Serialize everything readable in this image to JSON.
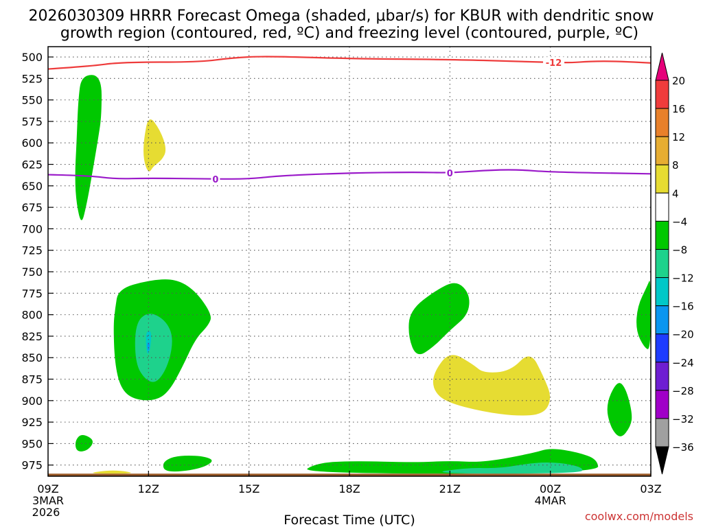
{
  "chart_data": {
    "type": "time-height cross section",
    "title_line1": "2026030309 HRRR Forecast Omega (shaded, μbar/s) for KBUR with dendritic snow",
    "title_line2": "growth region (contoured, red, ºC) and freezing level (contoured, purple, ºC)",
    "xlabel": "Forecast Time (UTC)",
    "credit": "coolwx.com/models",
    "x_ticks": [
      {
        "hour": 0,
        "label": "09Z",
        "date": "3MAR",
        "year": "2026"
      },
      {
        "hour": 3,
        "label": "12Z"
      },
      {
        "hour": 6,
        "label": "15Z"
      },
      {
        "hour": 9,
        "label": "18Z"
      },
      {
        "hour": 12,
        "label": "21Z"
      },
      {
        "hour": 15,
        "label": "00Z",
        "date": "4MAR"
      },
      {
        "hour": 18,
        "label": "03Z"
      }
    ],
    "xlim": [
      0,
      18
    ],
    "y_ticks": [
      "500",
      "525",
      "550",
      "575",
      "600",
      "625",
      "650",
      "675",
      "700",
      "725",
      "750",
      "775",
      "800",
      "825",
      "850",
      "875",
      "900",
      "925",
      "950",
      "975"
    ],
    "ylim_hpa": [
      488,
      988
    ],
    "surface_hpa": 985,
    "grid": true,
    "colorbar": {
      "labels": [
        "20",
        "16",
        "12",
        "8",
        "4",
        "-4",
        "-8",
        "-12",
        "-16",
        "-20",
        "-24",
        "-28",
        "-32",
        "-36"
      ],
      "bins": [
        {
          "from": 16,
          "to": 20,
          "color": "#f03c3c"
        },
        {
          "from": 12,
          "to": 16,
          "color": "#e8802a"
        },
        {
          "from": 8,
          "to": 12,
          "color": "#e6ad32"
        },
        {
          "from": 4,
          "to": 8,
          "color": "#e6dc32"
        },
        {
          "from": -4,
          "to": 4,
          "color": "#ffffff"
        },
        {
          "from": -8,
          "to": -4,
          "color": "#00c800"
        },
        {
          "from": -12,
          "to": -8,
          "color": "#1ed28c"
        },
        {
          "from": -16,
          "to": -12,
          "color": "#00c8c8"
        },
        {
          "from": -20,
          "to": -16,
          "color": "#0a96f0"
        },
        {
          "from": -24,
          "to": -20,
          "color": "#1e3cff"
        },
        {
          "from": -28,
          "to": -24,
          "color": "#6e1ed2"
        },
        {
          "from": -32,
          "to": -28,
          "color": "#a000c8"
        },
        {
          "from": -36,
          "to": -32,
          "color": "#a0a0a0"
        }
      ],
      "over_color": "#e6007a",
      "under_color": "#000000"
    },
    "contours": [
      {
        "name": "dendritic-growth-minus12C",
        "color": "#ee3b3b",
        "label": "-12",
        "label_hour": 15.1,
        "points": [
          [
            0,
            514
          ],
          [
            1.2,
            511
          ],
          [
            2.2,
            506
          ],
          [
            4.5,
            506
          ],
          [
            5.5,
            501
          ],
          [
            6.5,
            499
          ],
          [
            9,
            502
          ],
          [
            12,
            503
          ],
          [
            14,
            505
          ],
          [
            15.5,
            507
          ],
          [
            16.2,
            505
          ],
          [
            17,
            505
          ],
          [
            18,
            507
          ]
        ]
      },
      {
        "name": "freezing-level-0C",
        "color": "#9a19c9",
        "label": "0",
        "label_hour": 12,
        "label_hours": [
          5,
          12
        ],
        "points": [
          [
            0,
            637
          ],
          [
            1.2,
            638
          ],
          [
            2,
            642
          ],
          [
            3,
            641
          ],
          [
            5,
            642
          ],
          [
            6,
            642
          ],
          [
            7,
            638
          ],
          [
            9,
            635
          ],
          [
            11,
            634
          ],
          [
            12,
            635
          ],
          [
            13,
            632
          ],
          [
            14,
            631
          ],
          [
            15,
            634
          ],
          [
            18,
            636
          ]
        ]
      }
    ],
    "omega_regions": [
      {
        "category": "-4 to -8",
        "color": "#00c800",
        "shape": [
          [
            1.0,
            521
          ],
          [
            1.6,
            521
          ],
          [
            1.6,
            568
          ],
          [
            1.5,
            594
          ],
          [
            1.3,
            640
          ],
          [
            1.15,
            672
          ],
          [
            1.0,
            696
          ],
          [
            0.85,
            672
          ],
          [
            0.8,
            640
          ],
          [
            0.85,
            600
          ],
          [
            0.9,
            550
          ]
        ]
      },
      {
        "category": "4 to 8",
        "color": "#e6dc32",
        "shape": [
          [
            3.0,
            567
          ],
          [
            3.35,
            585
          ],
          [
            3.55,
            608
          ],
          [
            3.4,
            620
          ],
          [
            3.15,
            627
          ],
          [
            3.0,
            636
          ],
          [
            2.85,
            620
          ],
          [
            2.85,
            598
          ]
        ]
      },
      {
        "category": "-4 to -8",
        "color": "#00c800",
        "shape": [
          [
            2.1,
            770
          ],
          [
            3.0,
            760
          ],
          [
            3.8,
            758
          ],
          [
            4.4,
            772
          ],
          [
            4.9,
            800
          ],
          [
            4.8,
            812
          ],
          [
            4.4,
            828
          ],
          [
            4.0,
            862
          ],
          [
            3.6,
            890
          ],
          [
            3.2,
            900
          ],
          [
            2.6,
            899
          ],
          [
            2.2,
            888
          ],
          [
            2.0,
            860
          ],
          [
            1.95,
            815
          ],
          [
            2.0,
            793
          ]
        ]
      },
      {
        "category": "-8 to -12",
        "color": "#1ed28c",
        "shape": [
          [
            2.6,
            810
          ],
          [
            3.0,
            796
          ],
          [
            3.5,
            806
          ],
          [
            3.75,
            826
          ],
          [
            3.6,
            858
          ],
          [
            3.25,
            880
          ],
          [
            2.9,
            876
          ],
          [
            2.6,
            856
          ]
        ]
      },
      {
        "category": "-12 to -16",
        "color": "#00c8c8",
        "shape": [
          [
            2.9,
            820
          ],
          [
            3.1,
            818
          ],
          [
            3.05,
            842
          ],
          [
            2.95,
            848
          ]
        ]
      },
      {
        "category": "-16 to -20",
        "color": "#0a96f0",
        "shape": [
          [
            2.96,
            832
          ],
          [
            3.04,
            832
          ],
          [
            3.02,
            842
          ],
          [
            2.97,
            842
          ]
        ]
      },
      {
        "category": "-4 to -8",
        "color": "#00c800",
        "shape": [
          [
            0.8,
            947
          ],
          [
            1.0,
            938
          ],
          [
            1.4,
            946
          ],
          [
            1.2,
            958
          ],
          [
            0.85,
            960
          ]
        ]
      },
      {
        "category": "-4 to -8",
        "color": "#00c800",
        "shape": [
          [
            3.4,
            972
          ],
          [
            3.8,
            964
          ],
          [
            4.6,
            964
          ],
          [
            5.0,
            970
          ],
          [
            4.5,
            980
          ],
          [
            3.5,
            984
          ]
        ]
      },
      {
        "category": "4 to 8",
        "color": "#e6dc32",
        "shape": [
          [
            1.1,
            985
          ],
          [
            1.8,
            981
          ],
          [
            2.3,
            982
          ],
          [
            2.6,
            985
          ]
        ]
      },
      {
        "category": "-4 to -8",
        "color": "#00c800",
        "shape": [
          [
            7.5,
            985
          ],
          [
            8.0,
            973
          ],
          [
            9.0,
            970
          ],
          [
            11.0,
            972
          ],
          [
            12.0,
            970
          ],
          [
            13.0,
            972
          ],
          [
            14.5,
            961
          ],
          [
            15.0,
            955
          ],
          [
            15.8,
            960
          ],
          [
            16.4,
            968
          ],
          [
            16.45,
            985
          ]
        ]
      },
      {
        "category": "-8 to -12",
        "color": "#1ed28c",
        "shape": [
          [
            11.3,
            985
          ],
          [
            12.5,
            978
          ],
          [
            13.5,
            979
          ],
          [
            14.5,
            972
          ],
          [
            15.3,
            972
          ],
          [
            16.0,
            978
          ],
          [
            15.9,
            985
          ]
        ]
      },
      {
        "category": "-4 to -8",
        "color": "#00c800",
        "shape": [
          [
            10.8,
            795
          ],
          [
            11.6,
            771
          ],
          [
            12.2,
            760
          ],
          [
            12.6,
            776
          ],
          [
            12.55,
            800
          ],
          [
            12.0,
            818
          ],
          [
            11.5,
            838
          ],
          [
            11.0,
            850
          ],
          [
            10.75,
            825
          ]
        ]
      },
      {
        "category": "4 to 8",
        "color": "#e6dc32",
        "shape": [
          [
            11.5,
            868
          ],
          [
            12.0,
            842
          ],
          [
            12.7,
            858
          ],
          [
            13.0,
            868
          ],
          [
            13.8,
            866
          ],
          [
            14.4,
            842
          ],
          [
            14.8,
            872
          ],
          [
            15.05,
            897
          ],
          [
            14.8,
            916
          ],
          [
            14.0,
            918
          ],
          [
            13.0,
            913
          ],
          [
            11.9,
            902
          ],
          [
            11.5,
            888
          ]
        ]
      },
      {
        "category": "-4 to -8",
        "color": "#00c800",
        "shape": [
          [
            16.65,
            905
          ],
          [
            17.0,
            876
          ],
          [
            17.25,
            885
          ],
          [
            17.45,
            915
          ],
          [
            17.4,
            930
          ],
          [
            17.1,
            945
          ],
          [
            16.8,
            932
          ]
        ]
      },
      {
        "category": "-4 to -8",
        "color": "#00c800",
        "shape": [
          [
            17.6,
            790
          ],
          [
            17.9,
            766
          ],
          [
            18.0,
            756
          ],
          [
            18.0,
            842
          ],
          [
            17.8,
            838
          ],
          [
            17.55,
            818
          ]
        ]
      }
    ]
  }
}
